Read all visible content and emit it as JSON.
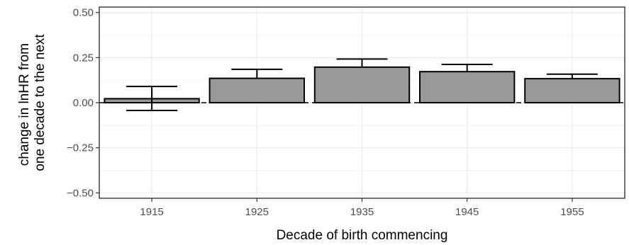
{
  "chart_data": {
    "type": "bar",
    "title": "",
    "xlabel": "Decade of birth commencing",
    "ylabel_lines": [
      "change in lnHR from",
      "one decade to the next"
    ],
    "categories": [
      "1915",
      "1925",
      "1935",
      "1945",
      "1955"
    ],
    "values": [
      0.022,
      0.135,
      0.197,
      0.172,
      0.133
    ],
    "error_low": [
      -0.043,
      0.135,
      0.197,
      0.172,
      0.133
    ],
    "error_high": [
      0.09,
      0.185,
      0.242,
      0.212,
      0.158
    ],
    "ylim": [
      -0.53,
      0.53
    ],
    "y_ticks": [
      -0.5,
      -0.25,
      0,
      0.25,
      0.5
    ],
    "y_tick_labels": [
      "−0.50",
      "−0.25",
      "0.00",
      "0.25",
      "0.50"
    ],
    "reference_line": 0,
    "grid": true,
    "legend": "none",
    "colors": {
      "bar_fill": "#999999",
      "bar_stroke": "#000000",
      "grid_major": "#ebebeb",
      "grid_minor": "#f5f5f5",
      "panel_border": "#333333"
    }
  }
}
